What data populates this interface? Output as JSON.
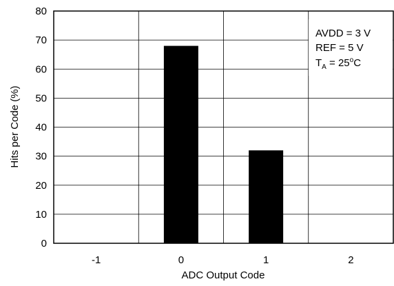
{
  "chart_data": {
    "type": "bar",
    "xlabel": "ADC Output Code",
    "ylabel": "Hits per Code (%)",
    "categories": [
      "-1",
      "0",
      "1",
      "2"
    ],
    "values": [
      0,
      68,
      32,
      0
    ],
    "ylim": [
      0,
      80
    ],
    "yticks": [
      0,
      10,
      20,
      30,
      40,
      50,
      60,
      70,
      80
    ],
    "grid": true,
    "annotation": {
      "line1": "AVDD = 3 V",
      "line2": "REF = 5 V",
      "line3_main": "T",
      "line3_sub": "A",
      "line3_value": " = 25",
      "line3_degree": "o",
      "line3_unit": "C"
    },
    "colors": {
      "bar": "#000000",
      "grid": "#000000",
      "background": "#ffffff"
    }
  }
}
